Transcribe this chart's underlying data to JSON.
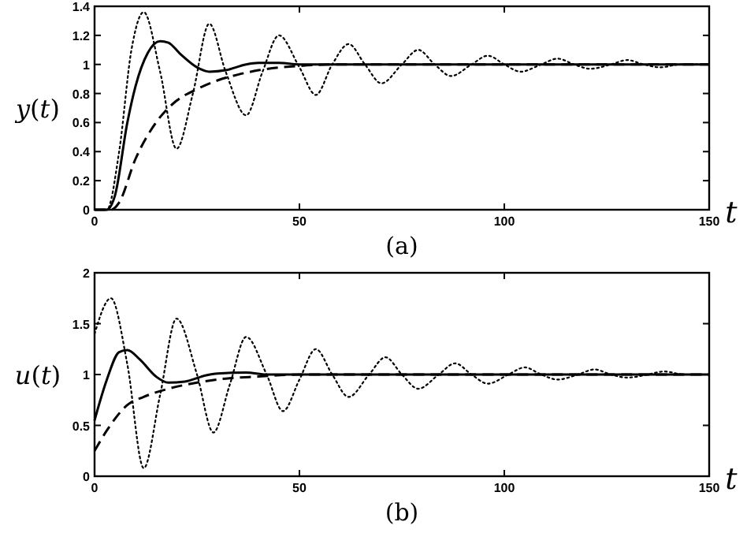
{
  "chart_data": [
    {
      "type": "line",
      "xlabel": "t",
      "ylabel": "y(t)",
      "annotations": [
        "(a)"
      ],
      "xlim": [
        0,
        150
      ],
      "ylim": [
        0,
        1.4
      ],
      "xticks": [
        0,
        50,
        100,
        150
      ],
      "yticks": [
        0,
        0.2,
        0.4,
        0.6,
        0.8,
        1,
        1.2,
        1.4
      ],
      "series": [
        {
          "color": "#000000",
          "line_style": "dotted",
          "x": [
            0,
            3,
            6,
            9,
            12,
            16,
            20,
            24,
            28,
            32,
            37,
            41,
            45,
            50,
            54,
            58,
            62,
            66,
            70,
            75,
            79,
            83,
            87,
            92,
            96,
            100,
            104,
            109,
            113,
            117,
            121,
            126,
            130,
            134,
            138,
            143,
            150
          ],
          "values": [
            0,
            0,
            0.4,
            1.1,
            1.36,
            0.95,
            0.42,
            0.8,
            1.28,
            0.95,
            0.65,
            0.95,
            1.2,
            0.98,
            0.79,
            1,
            1.14,
            1,
            0.87,
            1,
            1.1,
            1,
            0.92,
            1,
            1.06,
            1,
            0.95,
            1,
            1.04,
            1,
            0.97,
            1,
            1.03,
            1,
            0.98,
            1,
            1
          ]
        },
        {
          "color": "#000000",
          "line_style": "solid",
          "x": [
            0,
            3,
            5,
            8,
            10,
            13,
            16,
            18,
            21,
            25,
            28,
            32,
            37,
            40,
            45,
            50,
            150
          ],
          "values": [
            0,
            0,
            0.1,
            0.6,
            0.85,
            1.08,
            1.16,
            1.15,
            1.07,
            0.98,
            0.95,
            0.96,
            1,
            1.01,
            1.01,
            1,
            1
          ]
        },
        {
          "color": "#000000",
          "line_style": "dashed",
          "x": [
            0,
            4,
            6,
            10,
            15,
            20,
            25,
            30,
            35,
            40,
            50,
            60,
            150
          ],
          "values": [
            0,
            0,
            0.05,
            0.35,
            0.6,
            0.75,
            0.83,
            0.89,
            0.93,
            0.96,
            0.99,
            1,
            1
          ]
        }
      ]
    },
    {
      "type": "line",
      "xlabel": "t",
      "ylabel": "u(t)",
      "annotations": [
        "(b)"
      ],
      "xlim": [
        0,
        150
      ],
      "ylim": [
        0,
        2
      ],
      "xticks": [
        0,
        50,
        100,
        150
      ],
      "yticks": [
        0,
        0.5,
        1,
        1.5,
        2
      ],
      "series": [
        {
          "color": "#000000",
          "line_style": "dotted",
          "x": [
            0,
            4,
            8,
            12,
            16,
            20,
            25,
            29,
            33,
            37,
            42,
            46,
            50,
            54,
            58,
            62,
            67,
            71,
            75,
            79,
            84,
            88,
            92,
            96,
            101,
            105,
            109,
            113,
            118,
            122,
            126,
            130,
            135,
            139,
            144,
            150
          ],
          "values": [
            1.4,
            1.75,
            1.1,
            0.08,
            0.8,
            1.55,
            1,
            0.43,
            0.9,
            1.37,
            1,
            0.64,
            0.95,
            1.25,
            1,
            0.78,
            1,
            1.17,
            1,
            0.86,
            1,
            1.11,
            1,
            0.91,
            1,
            1.07,
            1,
            0.95,
            1,
            1.05,
            1,
            0.97,
            1,
            1.03,
            1,
            1
          ]
        },
        {
          "color": "#000000",
          "line_style": "solid",
          "x": [
            0,
            3,
            6,
            8,
            11,
            15,
            18,
            22,
            27,
            30,
            37,
            42,
            150
          ],
          "values": [
            0.55,
            0.95,
            1.22,
            1.24,
            1.15,
            0.98,
            0.92,
            0.93,
            0.99,
            1.01,
            1.02,
            1,
            1
          ]
        },
        {
          "color": "#000000",
          "line_style": "dashed",
          "x": [
            0,
            3,
            8,
            12,
            18,
            25,
            32,
            40,
            50,
            150
          ],
          "values": [
            0.25,
            0.45,
            0.7,
            0.78,
            0.86,
            0.92,
            0.96,
            0.98,
            1,
            1
          ]
        }
      ]
    }
  ]
}
